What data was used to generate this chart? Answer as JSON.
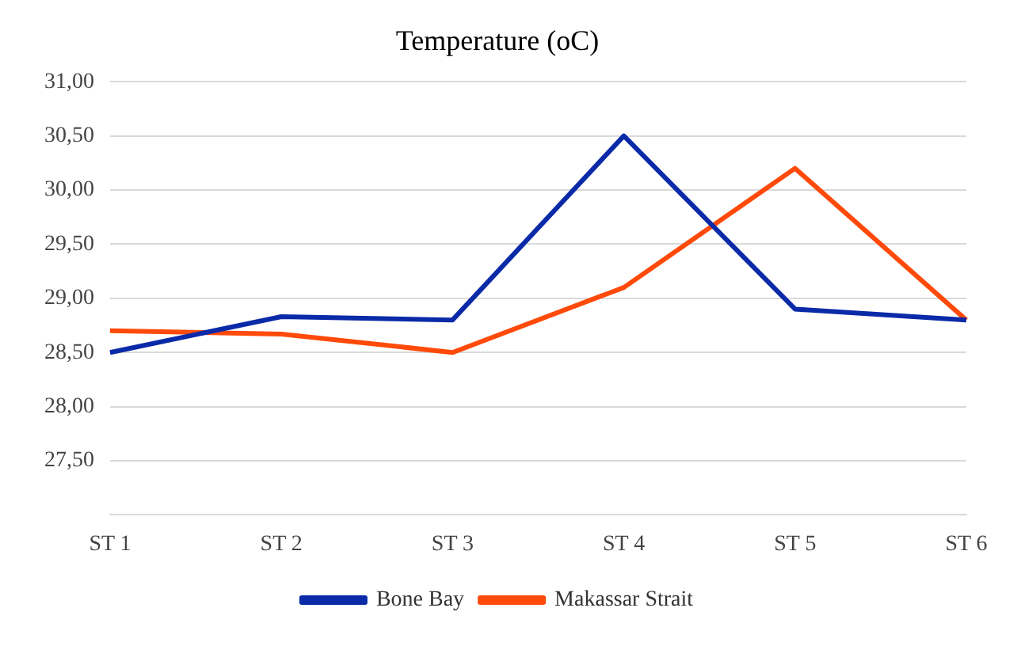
{
  "chart_data": {
    "type": "line",
    "title": "Temperature (oC)",
    "categories": [
      "ST 1",
      "ST 2",
      "ST 3",
      "ST 4",
      "ST 5",
      "ST 6"
    ],
    "series": [
      {
        "name": "Bone Bay",
        "color": "#0a2aa8",
        "values": [
          28.5,
          28.83,
          28.8,
          30.5,
          28.9,
          28.8
        ]
      },
      {
        "name": "Makassar Strait",
        "color": "#ff4a0a",
        "values": [
          28.7,
          28.67,
          28.5,
          29.1,
          30.2,
          28.8
        ]
      }
    ],
    "ylim": [
      27,
      31
    ],
    "yticks": [
      {
        "value": 27,
        "label": null
      },
      {
        "value": 27.5,
        "label": "27,50"
      },
      {
        "value": 28,
        "label": "28,00"
      },
      {
        "value": 28.5,
        "label": "28,50"
      },
      {
        "value": 29,
        "label": "29,00"
      },
      {
        "value": 29.5,
        "label": "29,50"
      },
      {
        "value": 30,
        "label": "30,00"
      },
      {
        "value": 30.5,
        "label": "30,50"
      },
      {
        "value": 31,
        "label": "31,00"
      }
    ],
    "grid": "y",
    "legend": "bottom",
    "marker": "none",
    "line_style": "solid"
  }
}
